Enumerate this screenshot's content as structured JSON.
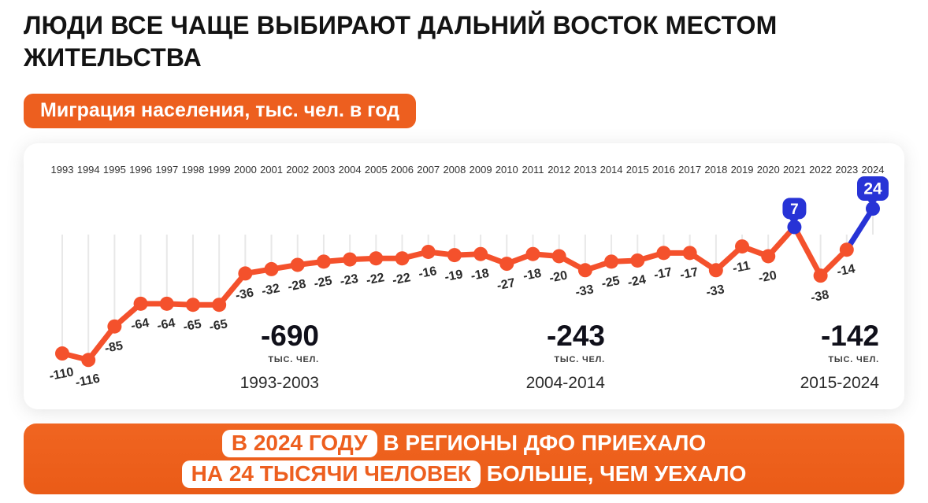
{
  "title": "ЛЮДИ ВСЕ ЧАЩЕ ВЫБИРАЮТ ДАЛЬНИЙ ВОСТОК МЕСТОМ ЖИТЕЛЬСТВА",
  "subtitle_badge": "Миграция населения, тыс. чел. в год",
  "colors": {
    "accent_orange": "#ED5F1F",
    "line_orange": "#F4512C",
    "highlight_blue": "#2733D6",
    "grid_line": "#E8E8E8",
    "year_label": "#333333",
    "value_label": "#2B2B2B"
  },
  "chart_data": {
    "type": "line",
    "title": "Миграция населения, тыс. чел. в год",
    "categories": [
      1993,
      1994,
      1995,
      1996,
      1997,
      1998,
      1999,
      2000,
      2001,
      2002,
      2003,
      2004,
      2005,
      2006,
      2007,
      2008,
      2009,
      2010,
      2011,
      2012,
      2013,
      2014,
      2015,
      2016,
      2017,
      2018,
      2019,
      2020,
      2021,
      2022,
      2023,
      2024
    ],
    "values": [
      -110,
      -116,
      -85,
      -64,
      -64,
      -65,
      -65,
      -36,
      -32,
      -28,
      -25,
      -23,
      -22,
      -22,
      -16,
      -19,
      -18,
      -27,
      -18,
      -20,
      -33,
      -25,
      -24,
      -17,
      -17,
      -33,
      -11,
      -20,
      7,
      -38,
      -14,
      24
    ],
    "ylim": [
      -125,
      30
    ],
    "grid": "vertical drop lines from zero baseline to each point",
    "legend": "none",
    "highlight_points": [
      {
        "year": 2021,
        "value": 7
      },
      {
        "year": 2024,
        "value": 24
      }
    ],
    "highlight_segment": {
      "from": 2023,
      "to": 2024
    },
    "summaries": [
      {
        "value": "-690",
        "unit": "ТЫС. ЧЕЛ.",
        "range": "1993-2003"
      },
      {
        "value": "-243",
        "unit": "ТЫС. ЧЕЛ.",
        "range": "2004-2014"
      },
      {
        "value": "-142",
        "unit": "ТЫС. ЧЕЛ.",
        "range": "2015-2024"
      }
    ]
  },
  "banner": {
    "line1_highlight": "В 2024 ГОДУ",
    "line1_rest": "В РЕГИОНЫ ДФО ПРИЕХАЛО",
    "line2_highlight": "НА 24 ТЫСЯЧИ ЧЕЛОВЕК",
    "line2_rest": "БОЛЬШЕ, ЧЕМ УЕХАЛО"
  }
}
